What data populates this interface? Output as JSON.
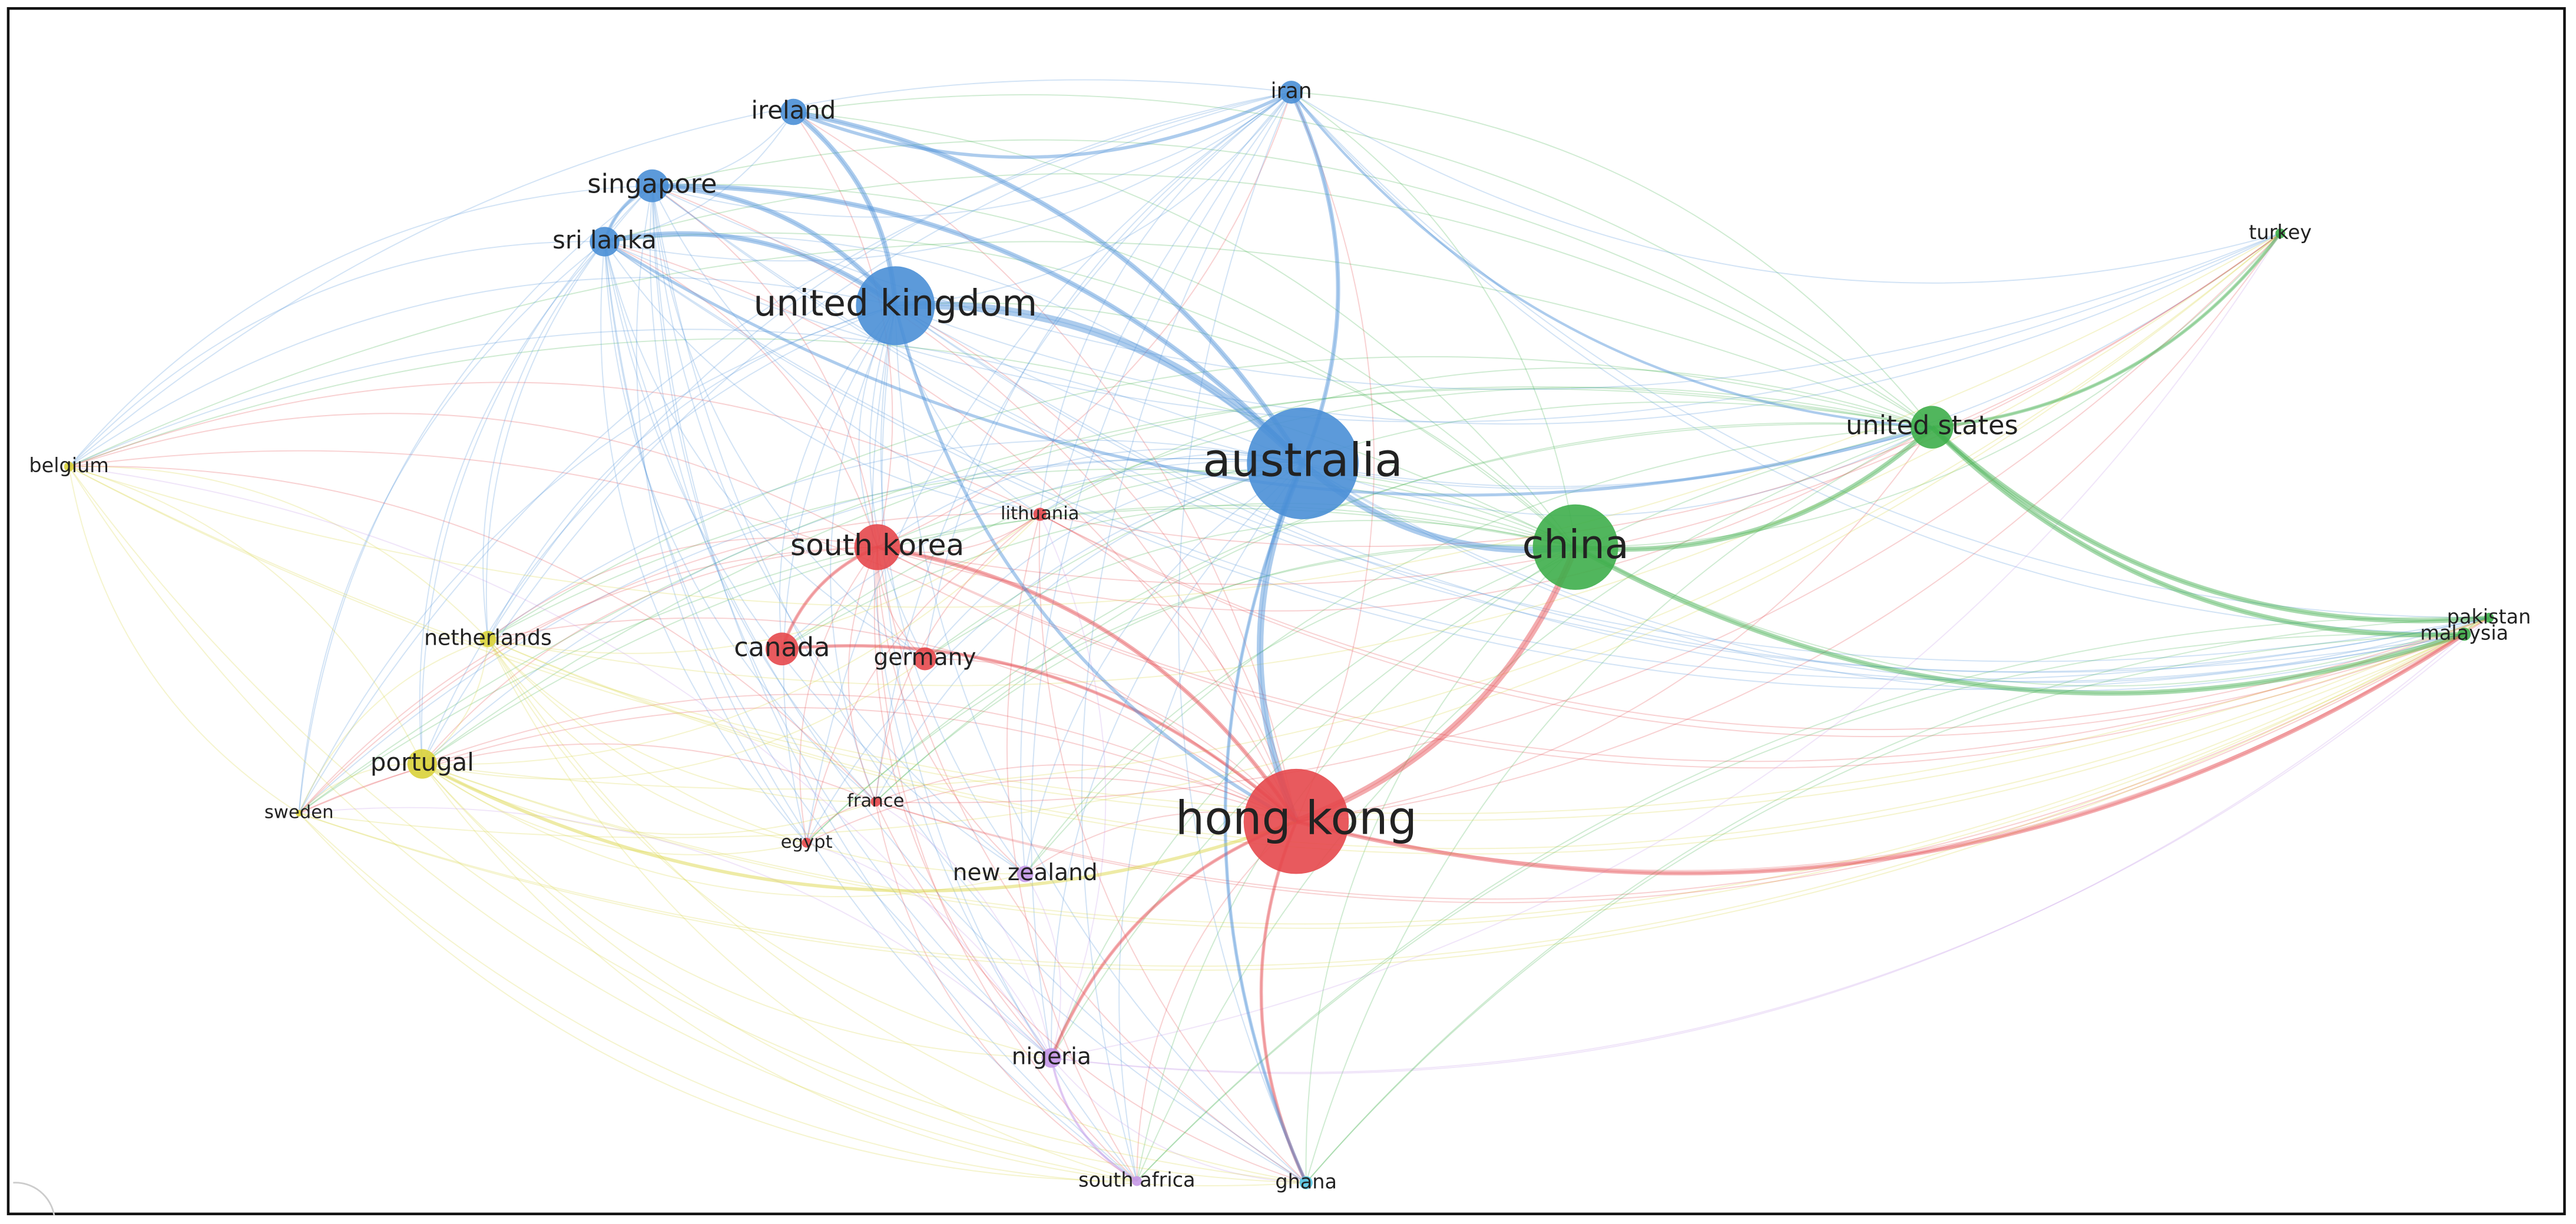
{
  "nodes": [
    {
      "label": "australia",
      "color": "#4a8fd6"
    },
    {
      "label": "hong kong",
      "color": "#e5484d"
    },
    {
      "label": "china",
      "color": "#3eae4b"
    },
    {
      "label": "united kingdom",
      "color": "#4a8fd6"
    },
    {
      "label": "south korea",
      "color": "#e5484d"
    },
    {
      "label": "united states",
      "color": "#3eae4b"
    },
    {
      "label": "canada",
      "color": "#e5484d"
    },
    {
      "label": "singapore",
      "color": "#4a8fd6"
    },
    {
      "label": "sri lanka",
      "color": "#4a8fd6"
    },
    {
      "label": "ireland",
      "color": "#4a8fd6"
    },
    {
      "label": "iran",
      "color": "#4a8fd6"
    },
    {
      "label": "portugal",
      "color": "#d9d23a"
    },
    {
      "label": "germany",
      "color": "#e5484d"
    },
    {
      "label": "netherlands",
      "color": "#d9d23a"
    },
    {
      "label": "nigeria",
      "color": "#c598e8"
    },
    {
      "label": "new zealand",
      "color": "#c598e8"
    },
    {
      "label": "lithuania",
      "color": "#e5484d"
    },
    {
      "label": "france",
      "color": "#e5484d"
    },
    {
      "label": "egypt",
      "color": "#e5484d"
    },
    {
      "label": "belgium",
      "color": "#d9d23a"
    },
    {
      "label": "sweden",
      "color": "#d9d23a"
    },
    {
      "label": "turkey",
      "color": "#3eae4b"
    },
    {
      "label": "pakistan",
      "color": "#3eae4b"
    },
    {
      "label": "malaysia",
      "color": "#3eae4b"
    },
    {
      "label": "south africa",
      "color": "#c598e8"
    },
    {
      "label": "ghana",
      "color": "#55c6e4"
    }
  ]
}
